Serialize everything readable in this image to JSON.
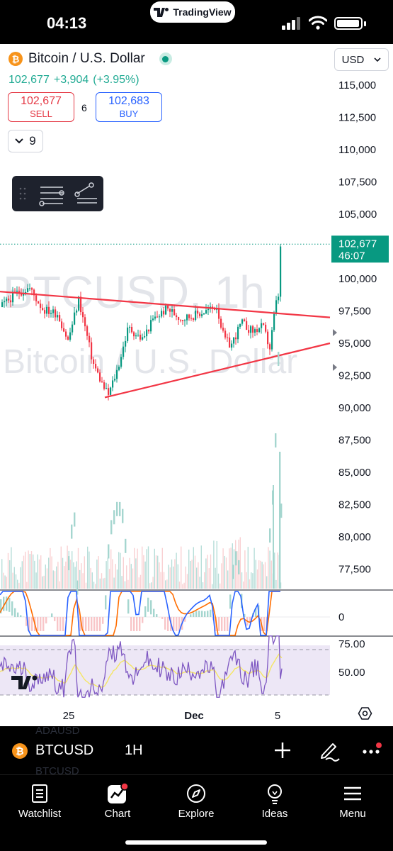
{
  "status_bar": {
    "time": "04:13",
    "app_pill": "TradingView"
  },
  "header": {
    "symbol_title": "Bitcoin / U.S. Dollar",
    "price": "102,677",
    "change": "+3,904",
    "change_pct": "(+3.95%)",
    "currency": "USD"
  },
  "trade": {
    "sell_price": "102,677",
    "sell_label": "SELL",
    "spread": "6",
    "buy_price": "102,683",
    "buy_label": "BUY"
  },
  "indicators_toggle": {
    "count": "9"
  },
  "watermark": {
    "line1": "BTCUSD, 1h",
    "line2": "Bitcoin / U.S. Dollar"
  },
  "price_axis": {
    "ticks": [
      "115,000",
      "112,500",
      "110,000",
      "107,500",
      "105,000",
      "100,000",
      "97,500",
      "95,000",
      "92,500",
      "90,000",
      "87,500",
      "85,000",
      "82,500",
      "80,000",
      "77,500"
    ],
    "last_price_label": "102,677",
    "countdown": "46:07"
  },
  "macd_axis": {
    "ticks": [
      "0"
    ]
  },
  "rsi_axis": {
    "ticks": [
      "75.00",
      "50.00"
    ]
  },
  "time_axis": {
    "ticks": [
      "25",
      "Dec",
      "5"
    ]
  },
  "colors": {
    "up": "#089981",
    "down": "#f23645",
    "trendline": "#f23645",
    "macd": "#2962ff",
    "signal": "#ff6d00",
    "rsi": "#7e57c2"
  },
  "symbol_bar": {
    "symbol": "BTCUSD",
    "interval": "1H",
    "ghost_above": "ADAUSD",
    "ghost_below": "BTCUSD"
  },
  "tabs": [
    {
      "label": "Watchlist",
      "icon": "watchlist-icon"
    },
    {
      "label": "Chart",
      "icon": "chart-icon"
    },
    {
      "label": "Explore",
      "icon": "compass-icon"
    },
    {
      "label": "Ideas",
      "icon": "lightbulb-icon"
    },
    {
      "label": "Menu",
      "icon": "hamburger-icon"
    }
  ]
}
